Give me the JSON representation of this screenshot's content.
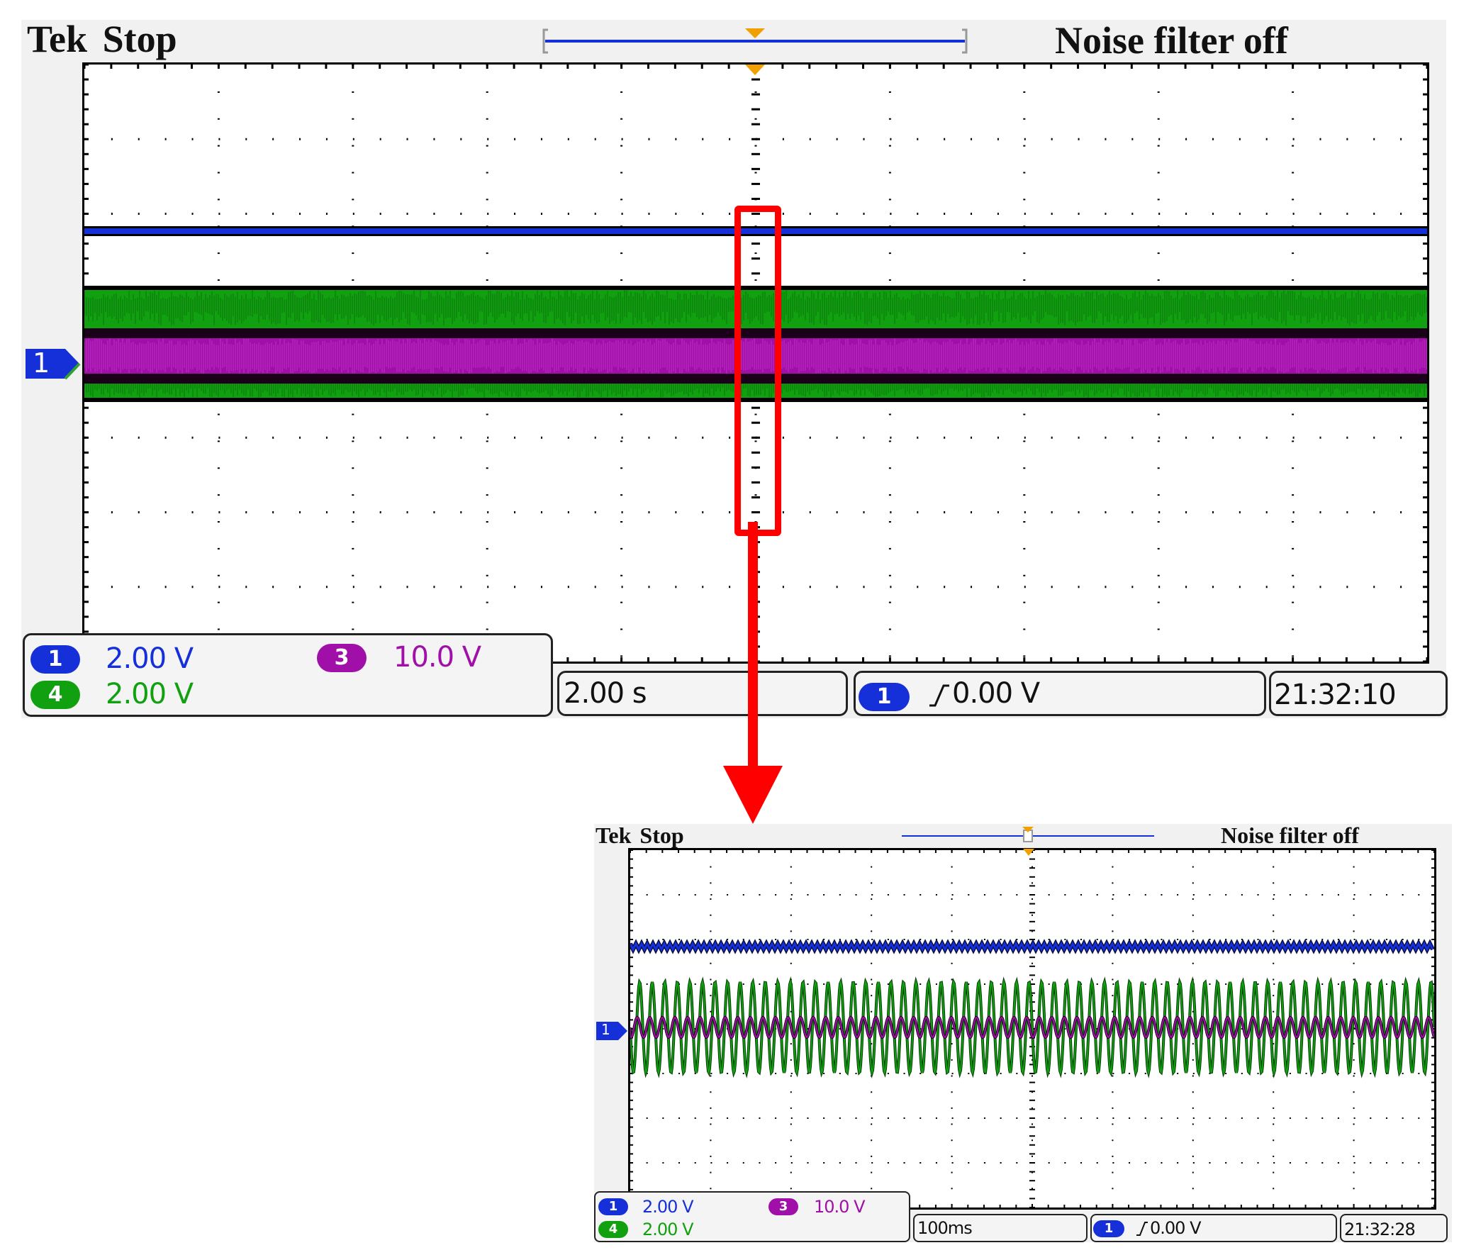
{
  "colors": {
    "ch1": "#1530d8",
    "ch3": "#a010a8",
    "ch4": "#10a010",
    "trigger": "#f0a000",
    "highlight": "#ff0000"
  },
  "overview": {
    "brand": "Tek",
    "state": "Stop",
    "noise_filter": "Noise filter off",
    "ch1_marker": "1",
    "channels": [
      {
        "num": "1",
        "scale": "2.00 V"
      },
      {
        "num": "3",
        "scale": "10.0 V"
      },
      {
        "num": "4",
        "scale": "2.00 V"
      }
    ],
    "timebase": "2.00 s",
    "trigger": {
      "source": "1",
      "level": "0.00 V"
    },
    "time": "21:32:10"
  },
  "zoom": {
    "brand": "Tek",
    "state": "Stop",
    "noise_filter": "Noise filter off",
    "ch1_marker": "1",
    "channels": [
      {
        "num": "1",
        "scale": "2.00 V"
      },
      {
        "num": "3",
        "scale": "10.0 V"
      },
      {
        "num": "4",
        "scale": "2.00 V"
      }
    ],
    "timebase": "100ms",
    "trigger": {
      "source": "1",
      "level": "0.00 V"
    },
    "time": "21:32:28"
  }
}
